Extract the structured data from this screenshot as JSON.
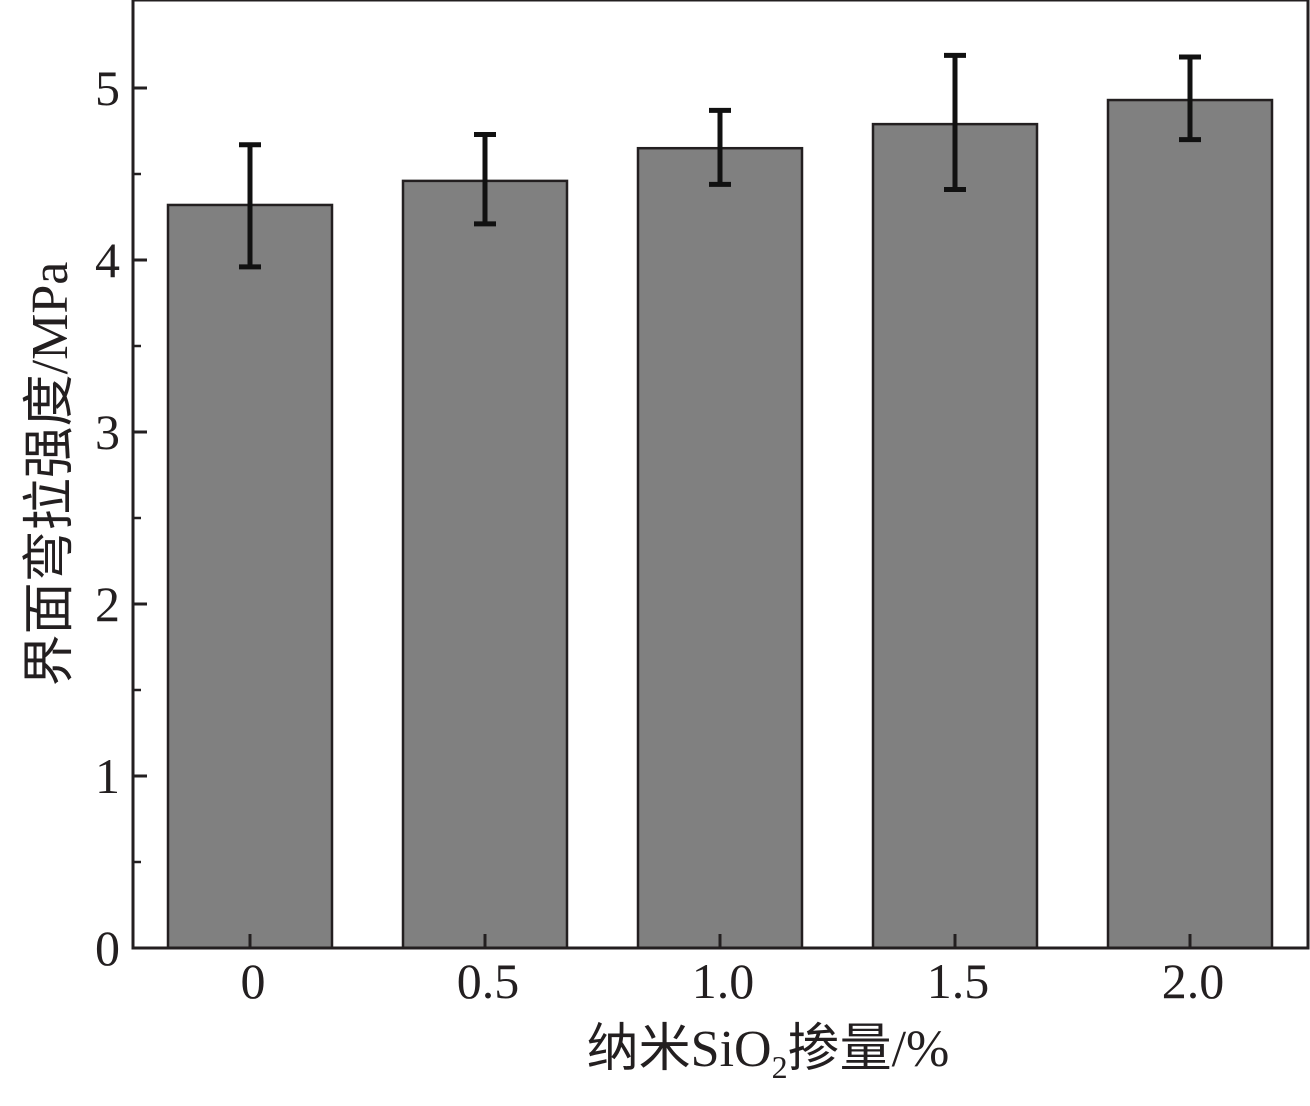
{
  "chart_data": {
    "type": "bar",
    "categories": [
      "0",
      "0.5",
      "1.0",
      "1.5",
      "2.0"
    ],
    "values": [
      4.32,
      4.46,
      4.65,
      4.79,
      4.93
    ],
    "error_low": [
      3.96,
      4.21,
      4.44,
      4.41,
      4.7
    ],
    "error_high": [
      4.67,
      4.73,
      4.87,
      5.19,
      5.18
    ],
    "xlabel_main": "纳米SiO",
    "xlabel_sub": "2",
    "xlabel_tail": "掺量/%",
    "ylabel": "界面弯拉强度/MPa",
    "ylim": [
      0,
      5.5
    ],
    "yticks": [
      "0",
      "1",
      "2",
      "3",
      "4",
      "5"
    ],
    "bar_color": "#808080",
    "grid": false,
    "legend": "none"
  }
}
